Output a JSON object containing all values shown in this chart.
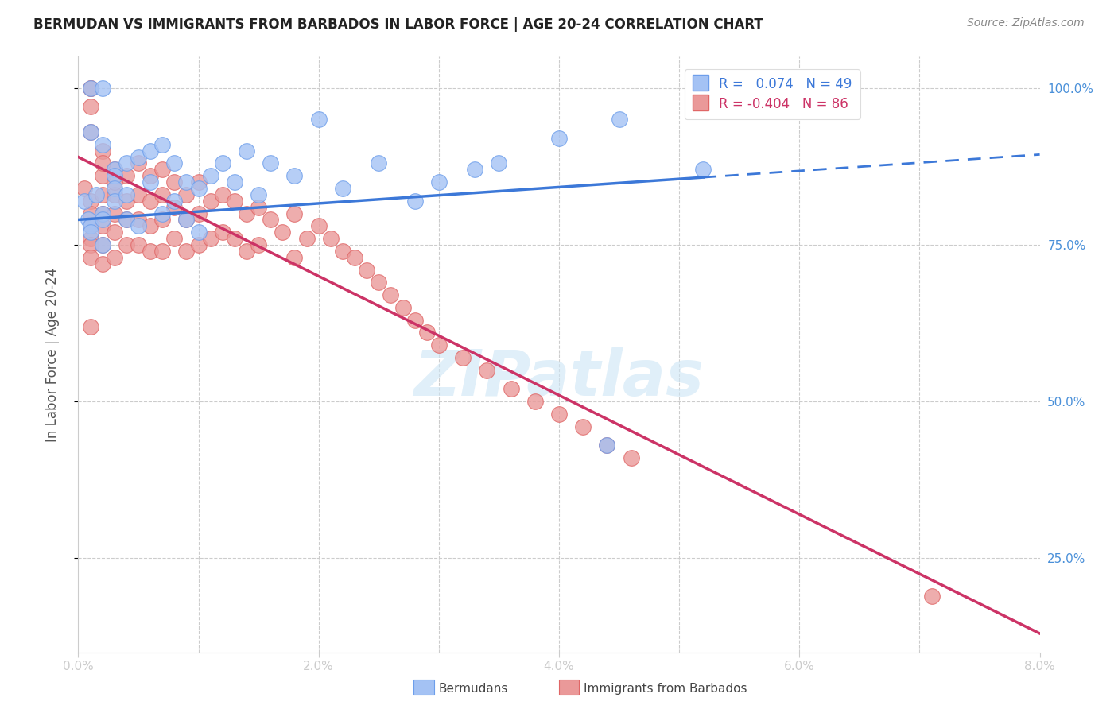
{
  "title": "BERMUDAN VS IMMIGRANTS FROM BARBADOS IN LABOR FORCE | AGE 20-24 CORRELATION CHART",
  "source": "Source: ZipAtlas.com",
  "ylabel": "In Labor Force | Age 20-24",
  "xlim": [
    0.0,
    0.08
  ],
  "ylim": [
    0.1,
    1.05
  ],
  "yticks": [
    0.25,
    0.5,
    0.75,
    1.0
  ],
  "yticklabels": [
    "25.0%",
    "50.0%",
    "75.0%",
    "100.0%"
  ],
  "blue_color": "#a4c2f4",
  "pink_color": "#ea9999",
  "blue_edge_color": "#6d9eeb",
  "pink_edge_color": "#e06666",
  "blue_line_color": "#3c78d8",
  "pink_line_color": "#cc3366",
  "legend_R_blue": "R =   0.074",
  "legend_N_blue": "N = 49",
  "legend_R_pink": "R = -0.404",
  "legend_N_pink": "N = 86",
  "watermark": "ZIPatlas",
  "blue_intercept": 0.79,
  "blue_slope": 1.3,
  "pink_intercept": 0.89,
  "pink_slope": -9.5,
  "blue_x": [
    0.0005,
    0.0008,
    0.001,
    0.001,
    0.001,
    0.0015,
    0.002,
    0.002,
    0.002,
    0.002,
    0.003,
    0.003,
    0.003,
    0.003,
    0.004,
    0.004,
    0.004,
    0.005,
    0.005,
    0.006,
    0.006,
    0.007,
    0.007,
    0.008,
    0.008,
    0.009,
    0.009,
    0.01,
    0.01,
    0.011,
    0.012,
    0.013,
    0.014,
    0.015,
    0.016,
    0.018,
    0.02,
    0.022,
    0.025,
    0.028,
    0.03,
    0.033,
    0.035,
    0.04,
    0.045,
    0.052,
    0.001,
    0.002,
    0.044
  ],
  "blue_y": [
    0.82,
    0.79,
    0.78,
    0.77,
    1.0,
    0.83,
    0.8,
    0.79,
    1.0,
    0.75,
    0.87,
    0.86,
    0.84,
    0.82,
    0.88,
    0.83,
    0.79,
    0.89,
    0.78,
    0.9,
    0.85,
    0.91,
    0.8,
    0.88,
    0.82,
    0.85,
    0.79,
    0.84,
    0.77,
    0.86,
    0.88,
    0.85,
    0.9,
    0.83,
    0.88,
    0.86,
    0.95,
    0.84,
    0.88,
    0.82,
    0.85,
    0.87,
    0.88,
    0.92,
    0.95,
    0.87,
    0.93,
    0.91,
    0.43
  ],
  "pink_x": [
    0.0005,
    0.001,
    0.001,
    0.001,
    0.001,
    0.001,
    0.001,
    0.001,
    0.002,
    0.002,
    0.002,
    0.002,
    0.002,
    0.002,
    0.003,
    0.003,
    0.003,
    0.003,
    0.003,
    0.004,
    0.004,
    0.004,
    0.004,
    0.005,
    0.005,
    0.005,
    0.005,
    0.006,
    0.006,
    0.006,
    0.006,
    0.007,
    0.007,
    0.007,
    0.007,
    0.008,
    0.008,
    0.008,
    0.009,
    0.009,
    0.009,
    0.01,
    0.01,
    0.01,
    0.011,
    0.011,
    0.012,
    0.012,
    0.013,
    0.013,
    0.014,
    0.014,
    0.015,
    0.015,
    0.016,
    0.017,
    0.018,
    0.018,
    0.019,
    0.02,
    0.021,
    0.022,
    0.023,
    0.024,
    0.025,
    0.026,
    0.027,
    0.028,
    0.029,
    0.03,
    0.032,
    0.034,
    0.036,
    0.038,
    0.04,
    0.042,
    0.044,
    0.046,
    0.001,
    0.001,
    0.001,
    0.002,
    0.002,
    0.003,
    0.071,
    0.001
  ],
  "pink_y": [
    0.84,
    0.82,
    0.8,
    0.78,
    0.76,
    0.75,
    0.73,
    1.0,
    0.86,
    0.83,
    0.8,
    0.78,
    0.75,
    0.72,
    0.87,
    0.83,
    0.8,
    0.77,
    0.73,
    0.86,
    0.82,
    0.79,
    0.75,
    0.88,
    0.83,
    0.79,
    0.75,
    0.86,
    0.82,
    0.78,
    0.74,
    0.87,
    0.83,
    0.79,
    0.74,
    0.85,
    0.81,
    0.76,
    0.83,
    0.79,
    0.74,
    0.85,
    0.8,
    0.75,
    0.82,
    0.76,
    0.83,
    0.77,
    0.82,
    0.76,
    0.8,
    0.74,
    0.81,
    0.75,
    0.79,
    0.77,
    0.8,
    0.73,
    0.76,
    0.78,
    0.76,
    0.74,
    0.73,
    0.71,
    0.69,
    0.67,
    0.65,
    0.63,
    0.61,
    0.59,
    0.57,
    0.55,
    0.52,
    0.5,
    0.48,
    0.46,
    0.43,
    0.41,
    1.0,
    0.97,
    0.93,
    0.9,
    0.88,
    0.85,
    0.19,
    0.62
  ]
}
